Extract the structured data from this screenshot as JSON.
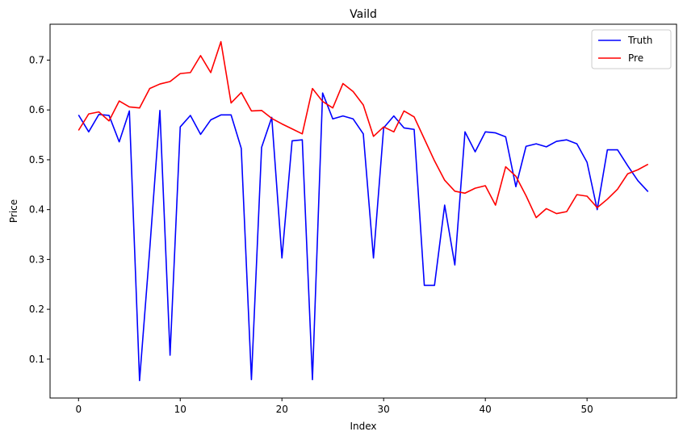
{
  "chart_data": {
    "type": "line",
    "title": "Vaild",
    "xlabel": "Index",
    "ylabel": "Price",
    "xlim": [
      -2.8,
      58.8
    ],
    "ylim": [
      0.022,
      0.772
    ],
    "xticks": [
      0,
      10,
      20,
      30,
      40,
      50
    ],
    "yticks": [
      0.1,
      0.2,
      0.3,
      0.4,
      0.5,
      0.6,
      0.7
    ],
    "grid": false,
    "legend": "top-right",
    "x": [
      0,
      1,
      2,
      3,
      4,
      5,
      6,
      7,
      8,
      9,
      10,
      11,
      12,
      13,
      14,
      15,
      16,
      17,
      18,
      19,
      20,
      21,
      22,
      23,
      24,
      25,
      26,
      27,
      28,
      29,
      30,
      31,
      32,
      33,
      34,
      35,
      36,
      37,
      38,
      39,
      40,
      41,
      42,
      43,
      44,
      45,
      46,
      47,
      48,
      49,
      50,
      51,
      52,
      53,
      54,
      55,
      56
    ],
    "series": [
      {
        "name": "Truth",
        "color": "#0000ff",
        "values": [
          0.59,
          0.556,
          0.591,
          0.589,
          0.536,
          0.598,
          0.057,
          0.32,
          0.599,
          0.108,
          0.566,
          0.589,
          0.551,
          0.58,
          0.59,
          0.59,
          0.523,
          0.059,
          0.525,
          0.585,
          0.303,
          0.538,
          0.54,
          0.059,
          0.634,
          0.582,
          0.588,
          0.582,
          0.552,
          0.303,
          0.564,
          0.588,
          0.564,
          0.561,
          0.248,
          0.248,
          0.409,
          0.289,
          0.556,
          0.516,
          0.556,
          0.554,
          0.546,
          0.446,
          0.527,
          0.532,
          0.526,
          0.537,
          0.54,
          0.532,
          0.495,
          0.4,
          0.52,
          0.52,
          0.488,
          0.458,
          0.436
        ]
      },
      {
        "name": "Pre",
        "color": "#ff0000",
        "values": [
          0.559,
          0.592,
          0.596,
          0.578,
          0.618,
          0.606,
          0.604,
          0.643,
          0.652,
          0.657,
          0.673,
          0.675,
          0.709,
          0.675,
          0.737,
          0.614,
          0.635,
          0.598,
          0.599,
          0.583,
          0.572,
          0.562,
          0.552,
          0.643,
          0.617,
          0.604,
          0.653,
          0.637,
          0.61,
          0.547,
          0.566,
          0.556,
          0.598,
          0.586,
          0.542,
          0.498,
          0.459,
          0.437,
          0.433,
          0.443,
          0.448,
          0.409,
          0.486,
          0.467,
          0.428,
          0.384,
          0.402,
          0.392,
          0.396,
          0.43,
          0.427,
          0.404,
          0.421,
          0.441,
          0.472,
          0.48,
          0.491
        ]
      }
    ]
  }
}
